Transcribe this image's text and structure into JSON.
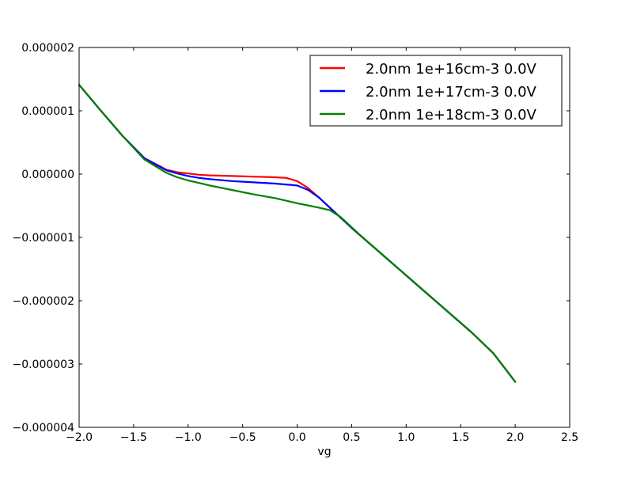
{
  "chart_data": {
    "type": "line",
    "title": "",
    "xlabel": "vg",
    "ylabel": "",
    "xlim": [
      -2.0,
      2.5
    ],
    "ylim": [
      -4e-06,
      2e-06
    ],
    "xticks": [
      -2.0,
      -1.5,
      -1.0,
      -0.5,
      0.0,
      0.5,
      1.0,
      1.5,
      2.0,
      2.5
    ],
    "xtick_labels": [
      "−2.0",
      "−1.5",
      "−1.0",
      "−0.5",
      "0.0",
      "0.5",
      "1.0",
      "1.5",
      "2.0",
      "2.5"
    ],
    "yticks": [
      2e-06,
      1e-06,
      0.0,
      -1e-06,
      -2e-06,
      -3e-06,
      -4e-06
    ],
    "ytick_labels": [
      "0.000002",
      "0.000001",
      "0.000000",
      "−0.000001",
      "−0.000002",
      "−0.000003",
      "−0.000004"
    ],
    "grid": false,
    "legend_position": "top-right",
    "series": [
      {
        "name": "2.0nm 1e+16cm-3 0.0V",
        "color": "#ff0000",
        "x": [
          -2.0,
          -1.8,
          -1.6,
          -1.4,
          -1.2,
          -1.1,
          -1.0,
          -0.9,
          -0.8,
          -0.6,
          -0.4,
          -0.2,
          -0.1,
          0.0,
          0.1,
          0.2,
          0.3,
          0.4,
          0.5,
          0.6,
          0.8,
          1.0,
          1.2,
          1.4,
          1.6,
          1.8,
          2.0
        ],
        "y": [
          1.41e-06,
          1e-06,
          6e-07,
          2.5e-07,
          7e-08,
          3e-08,
          1e-08,
          -1e-08,
          -2e-08,
          -3e-08,
          -4e-08,
          -5e-08,
          -6e-08,
          -1.1e-07,
          -2.2e-07,
          -3.7e-07,
          -5.3e-07,
          -6.9e-07,
          -8.5e-07,
          -1e-06,
          -1.3e-06,
          -1.6e-06,
          -1.9e-06,
          -2.2e-06,
          -2.5e-06,
          -2.83e-06,
          -3.28e-06
        ]
      },
      {
        "name": "2.0nm 1e+17cm-3 0.0V",
        "color": "#0000ff",
        "x": [
          -2.0,
          -1.8,
          -1.6,
          -1.4,
          -1.2,
          -1.1,
          -1.0,
          -0.9,
          -0.8,
          -0.6,
          -0.4,
          -0.2,
          0.0,
          0.1,
          0.2,
          0.3,
          0.4,
          0.5,
          0.6,
          0.8,
          1.0,
          1.2,
          1.4,
          1.6,
          1.8,
          2.0
        ],
        "y": [
          1.41e-06,
          1e-06,
          6e-07,
          2.5e-07,
          6e-08,
          1e-08,
          -3e-08,
          -6e-08,
          -8e-08,
          -1.1e-07,
          -1.3e-07,
          -1.5e-07,
          -1.8e-07,
          -2.5e-07,
          -3.7e-07,
          -5.3e-07,
          -6.9e-07,
          -8.5e-07,
          -1e-06,
          -1.3e-06,
          -1.6e-06,
          -1.9e-06,
          -2.2e-06,
          -2.5e-06,
          -2.83e-06,
          -3.28e-06
        ]
      },
      {
        "name": "2.0nm 1e+18cm-3 0.0V",
        "color": "#008000",
        "x": [
          -2.0,
          -1.8,
          -1.6,
          -1.4,
          -1.2,
          -1.1,
          -1.0,
          -0.9,
          -0.8,
          -0.6,
          -0.4,
          -0.2,
          0.0,
          0.2,
          0.3,
          0.4,
          0.5,
          0.6,
          0.8,
          1.0,
          1.2,
          1.4,
          1.6,
          1.8,
          2.0
        ],
        "y": [
          1.41e-06,
          1e-06,
          6e-07,
          2.3e-07,
          2e-08,
          -5e-08,
          -1e-07,
          -1.4e-07,
          -1.8e-07,
          -2.5e-07,
          -3.2e-07,
          -3.8e-07,
          -4.6e-07,
          -5.3e-07,
          -5.7e-07,
          -6.8e-07,
          -8.4e-07,
          -1e-06,
          -1.3e-06,
          -1.6e-06,
          -1.9e-06,
          -2.2e-06,
          -2.5e-06,
          -2.83e-06,
          -3.28e-06
        ]
      }
    ]
  }
}
